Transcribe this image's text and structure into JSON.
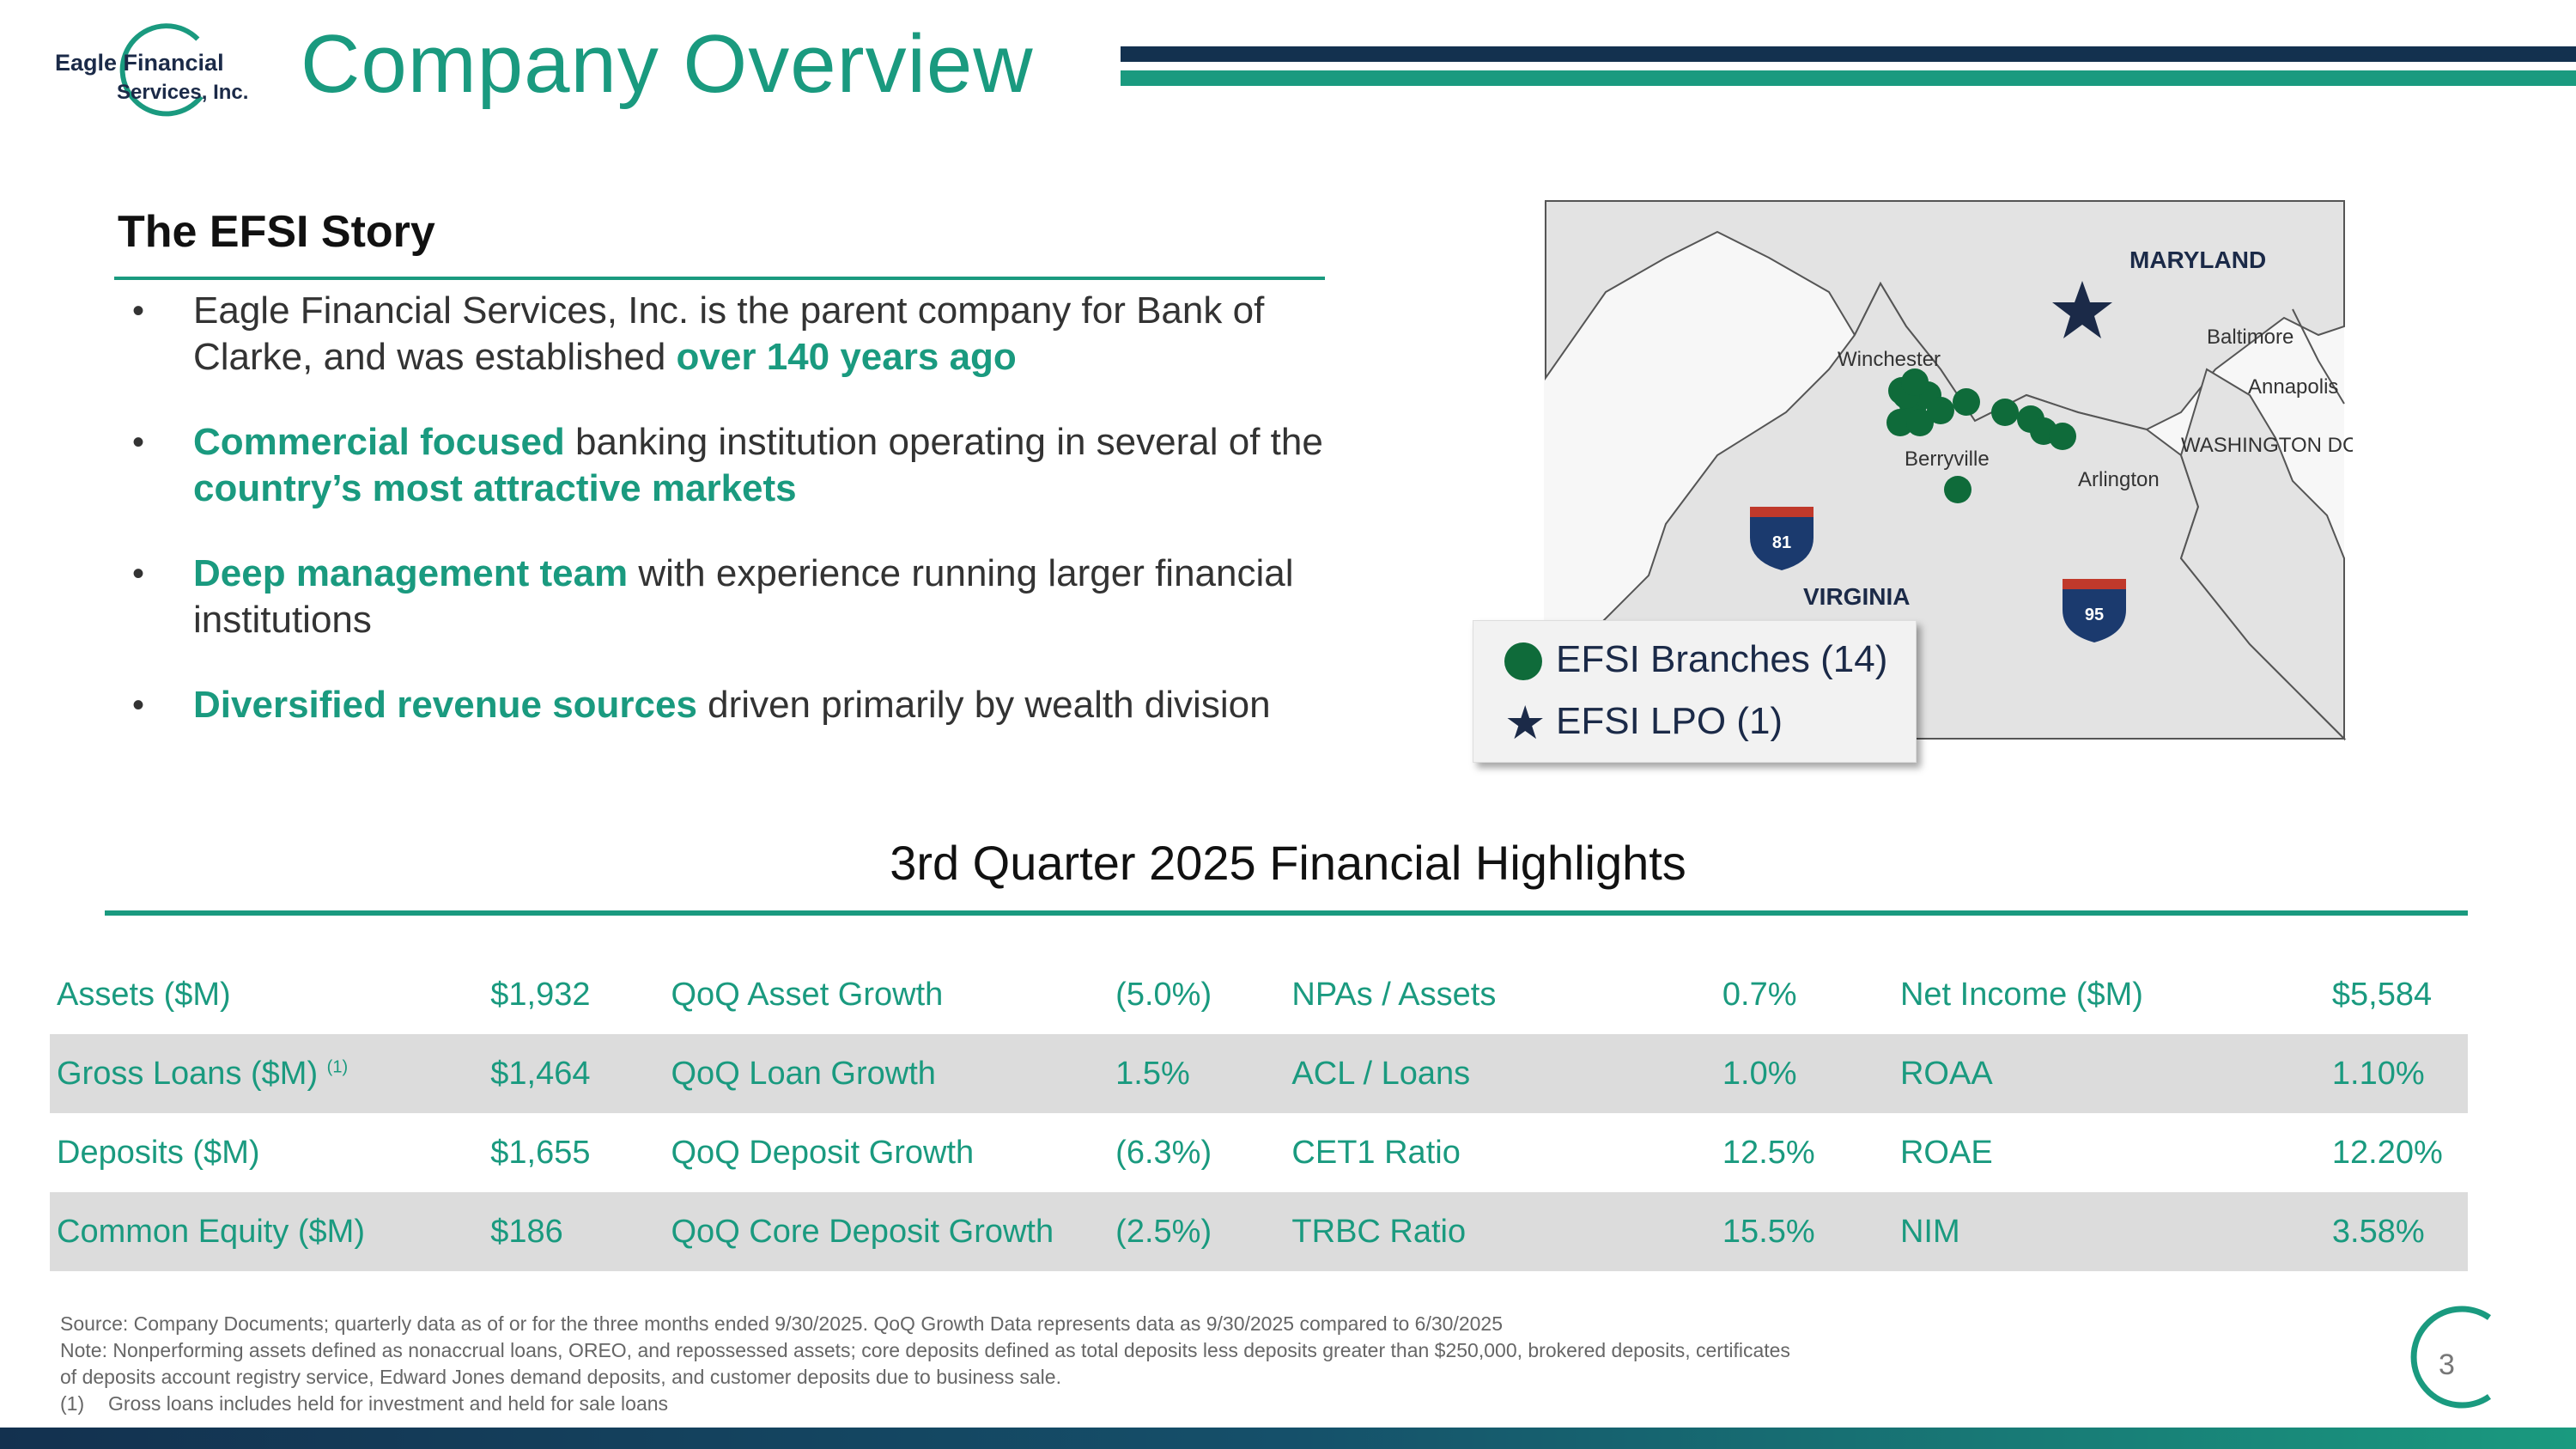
{
  "logo": {
    "line1": "Eagle Financial",
    "line2": "Services, Inc."
  },
  "header": {
    "title": "Company Overview"
  },
  "story": {
    "title": "The EFSI Story",
    "bullets": [
      {
        "pre": "",
        "em": "",
        "post": "Eagle Financial Services, Inc. is the parent company for Bank of Clarke, and was established ",
        "em2": "over 140 years ago"
      },
      {
        "em": "Commercial focused",
        "post": " banking institution operating in several of the ",
        "em2": "country’s most attractive markets"
      },
      {
        "em": "Deep management team",
        "post": " with experience running larger financial institutions"
      },
      {
        "em": "Diversified revenue sources",
        "post": " driven primarily by wealth division"
      }
    ]
  },
  "map": {
    "labels": {
      "maryland": "MARYLAND",
      "virginia": "VIRGINIA",
      "winchester": "Winchester",
      "berryville": "Berryville",
      "baltimore": "Baltimore",
      "annapolis": "Annapolis",
      "washington": "WASHINGTON DC",
      "arlington": "Arlington",
      "i81": "81",
      "i95": "95"
    },
    "colors": {
      "branch": "#0f6b3a",
      "lpo": "#1b2a48",
      "land": "#e3e3e3"
    },
    "legend": {
      "branches": "EFSI Branches (14)",
      "lpo": "EFSI LPO (1)"
    }
  },
  "highlights": {
    "title": "3rd Quarter 2025 Financial Highlights",
    "rows": [
      {
        "l1": "Assets ($M)",
        "v1": "$1,932",
        "l2": "QoQ Asset Growth",
        "v2": "(5.0%)",
        "l3": "NPAs / Assets",
        "v3": "0.7%",
        "l4": "Net Income ($M)",
        "v4": "$5,584"
      },
      {
        "l1": "Gross Loans ($M)",
        "sup": "(1)",
        "v1": "$1,464",
        "l2": "QoQ Loan Growth",
        "v2": "1.5%",
        "l3": "ACL / Loans",
        "v3": "1.0%",
        "l4": "ROAA",
        "v4": "1.10%"
      },
      {
        "l1": "Deposits ($M)",
        "v1": "$1,655",
        "l2": "QoQ Deposit Growth",
        "v2": "(6.3%)",
        "l3": "CET1 Ratio",
        "v3": "12.5%",
        "l4": "ROAE",
        "v4": "12.20%"
      },
      {
        "l1": "Common Equity ($M)",
        "v1": "$186",
        "l2": "QoQ Core Deposit Growth",
        "v2": "(2.5%)",
        "l3": "TRBC Ratio",
        "v3": "15.5%",
        "l4": "NIM",
        "v4": "3.58%"
      }
    ]
  },
  "footnotes": {
    "source": "Source: Company Documents; quarterly data as of or for the three months ended 9/30/2025. QoQ Growth Data represents data as 9/30/2025 compared to 6/30/2025",
    "note1": "Note: Nonperforming assets defined as nonaccrual loans, OREO, and repossessed assets; core deposits defined as total deposits less deposits greater than $250,000, brokered deposits, certificates",
    "note2": "of deposits account registry service, Edward Jones demand deposits, and customer deposits due to business sale.",
    "ref": "(1)",
    "fn1": "Gross loans includes held for investment and held for sale loans"
  },
  "page": {
    "number": "3"
  }
}
